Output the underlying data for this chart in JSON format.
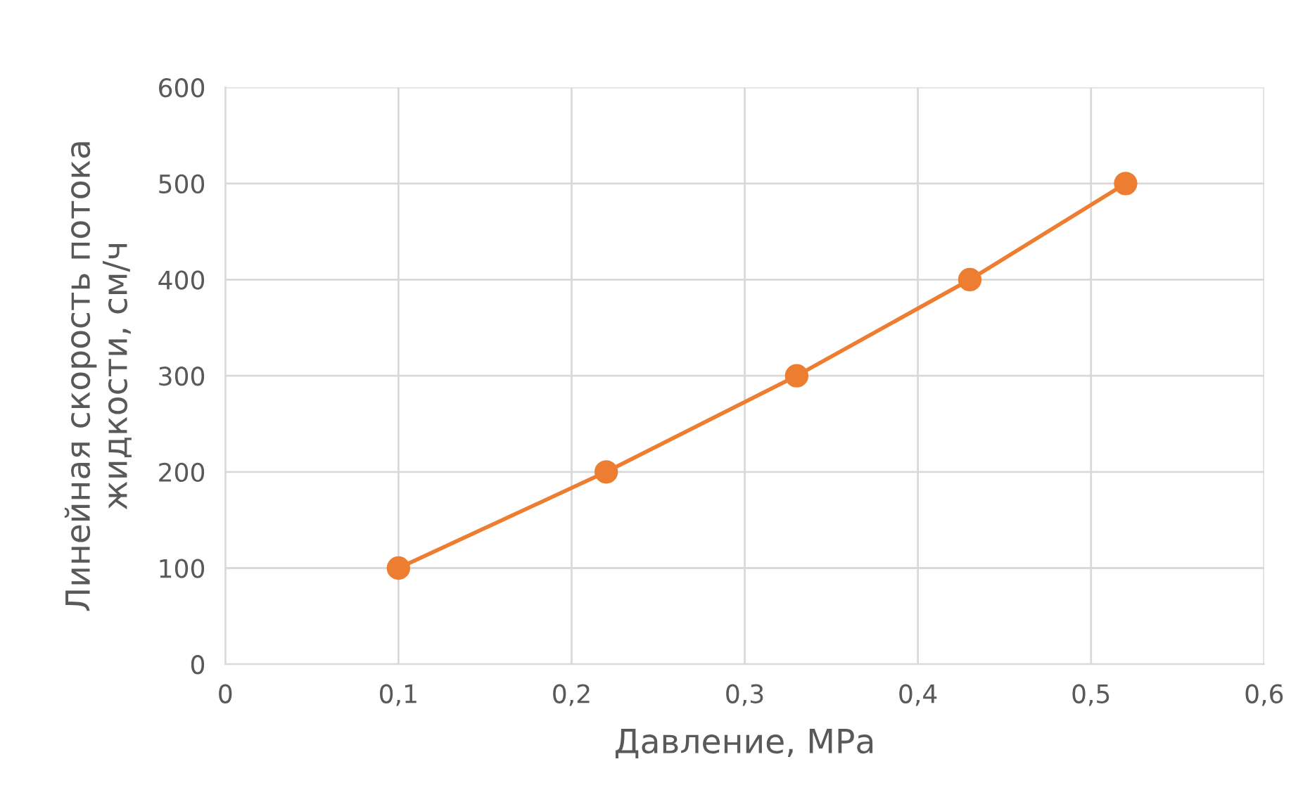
{
  "chart_data": {
    "type": "line",
    "xlabel": "Давление, МРа",
    "ylabel": "Линейная скорость потока\nжидкости, см/ч",
    "x": [
      0.1,
      0.22,
      0.33,
      0.43,
      0.52
    ],
    "series": [
      {
        "color": "#ed7d31",
        "values": [
          100,
          200,
          300,
          400,
          500
        ]
      }
    ],
    "xlim": [
      0,
      0.6
    ],
    "xticks": [
      0,
      {
        "value": 0.1,
        "label": "0,1"
      },
      {
        "value": 0.2,
        "label": "0,2"
      },
      {
        "value": 0.3,
        "label": "0,3"
      },
      {
        "value": 0.4,
        "label": "0,4"
      },
      {
        "value": 0.5,
        "label": "0,5"
      },
      {
        "value": 0.6,
        "label": "0,6"
      }
    ],
    "ylim": [
      0,
      600
    ],
    "yticks": [
      0,
      100,
      200,
      300,
      400,
      500,
      600
    ],
    "grid": true,
    "marker": "circle",
    "line_style": "solid",
    "legend": false
  }
}
